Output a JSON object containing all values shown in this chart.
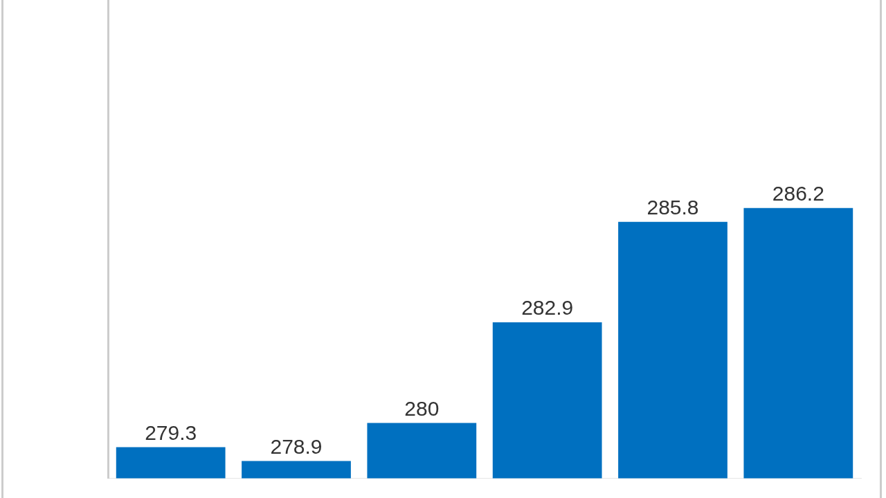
{
  "chart_data": {
    "type": "bar",
    "categories": [
      null,
      null,
      null,
      null,
      null,
      null
    ],
    "values": [
      279.3,
      278.9,
      280,
      282.9,
      285.8,
      286.2
    ],
    "color": "#0070c0",
    "ylim": [
      278.4,
      292.2
    ],
    "data_labels": true,
    "grid": false,
    "legend": false
  }
}
